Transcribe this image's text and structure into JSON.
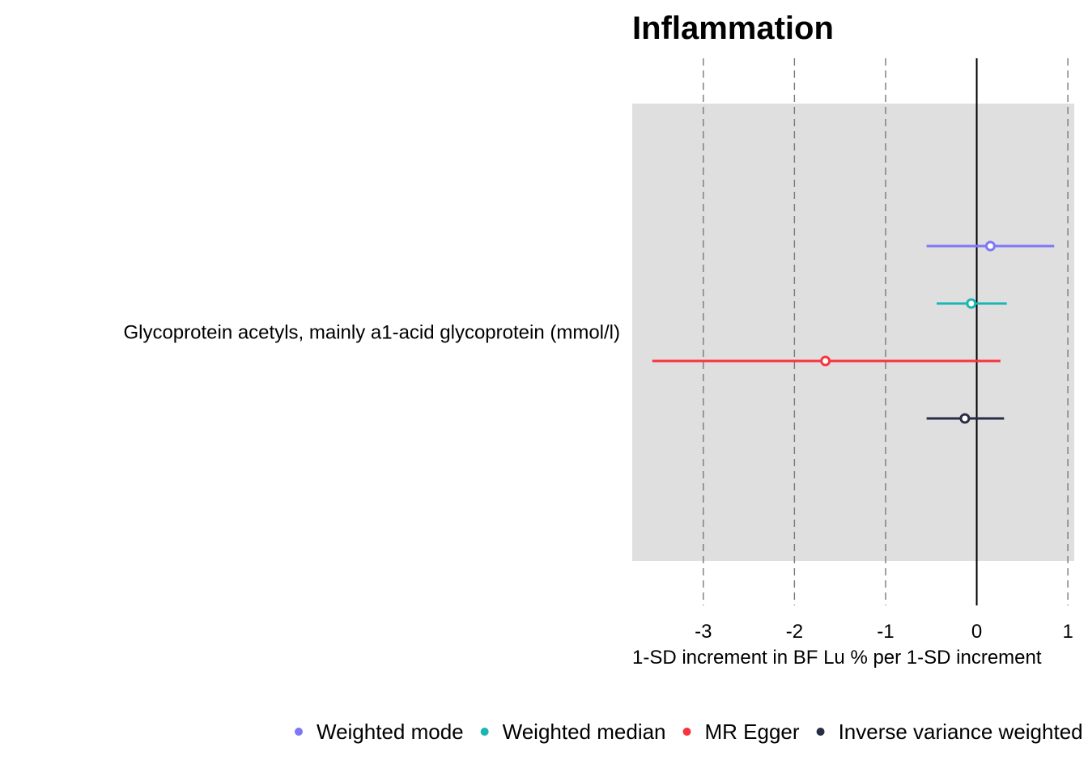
{
  "chart_data": {
    "type": "forest",
    "title": "Inflammation",
    "xlabel": "1-SD increment in BF Lu % per 1-SD increment",
    "xlim": [
      -3.78,
      1.07
    ],
    "xticks": [
      -3,
      -2,
      -1,
      0,
      1
    ],
    "xtick_labels": [
      "-3",
      "-2",
      "-1",
      "0",
      "1"
    ],
    "reference_line": 0,
    "categories": [
      "Glycoprotein acetyls, mainly a1-acid glycoprotein (mmol/l)"
    ],
    "series": [
      {
        "name": "Weighted mode",
        "color": "#7f77f7",
        "estimate": 0.15,
        "lower": -0.55,
        "upper": 0.85
      },
      {
        "name": "Weighted median",
        "color": "#1bb6b4",
        "estimate": -0.06,
        "lower": -0.44,
        "upper": 0.33
      },
      {
        "name": "MR Egger",
        "color": "#f8343f",
        "estimate": -1.66,
        "lower": -3.56,
        "upper": 0.26
      },
      {
        "name": "Inverse variance weighted",
        "color": "#2a2d46",
        "estimate": -0.13,
        "lower": -0.55,
        "upper": 0.3
      }
    ],
    "legend": {
      "position": "bottom",
      "labels": [
        "Weighted mode",
        "Weighted median",
        "MR Egger",
        "Inverse variance weighted"
      ]
    }
  }
}
